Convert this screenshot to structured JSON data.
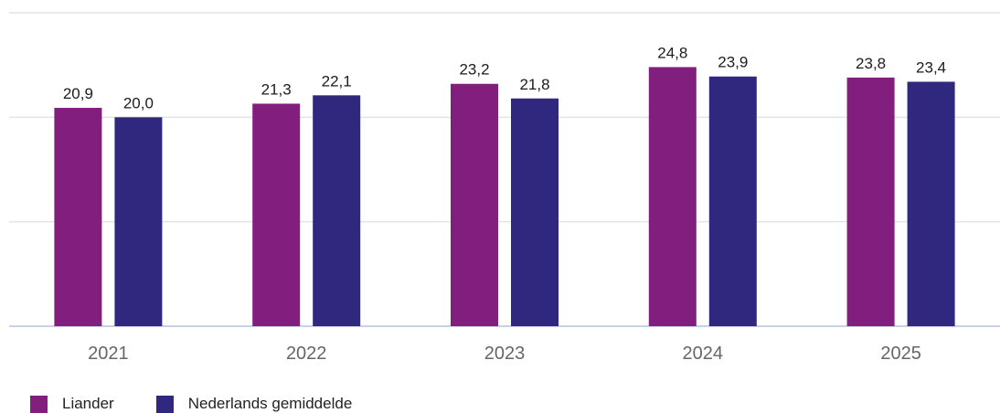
{
  "chart_data": {
    "type": "bar",
    "categories": [
      "2021",
      "2022",
      "2023",
      "2024",
      "2025"
    ],
    "series": [
      {
        "name": "Liander",
        "color": "#821e7e",
        "values": [
          20.9,
          21.3,
          23.2,
          24.8,
          23.8
        ],
        "labels": [
          "20,9",
          "21,3",
          "23,2",
          "24,8",
          "23,8"
        ]
      },
      {
        "name": "Nederlands gemiddelde",
        "color": "#30287e",
        "values": [
          20.0,
          22.1,
          21.8,
          23.9,
          23.4
        ],
        "labels": [
          "20,0",
          "22,1",
          "21,8",
          "23,9",
          "23,4"
        ]
      }
    ],
    "ylim": [
      0,
      30
    ],
    "grid": true,
    "legend_position": "bottom-left"
  }
}
